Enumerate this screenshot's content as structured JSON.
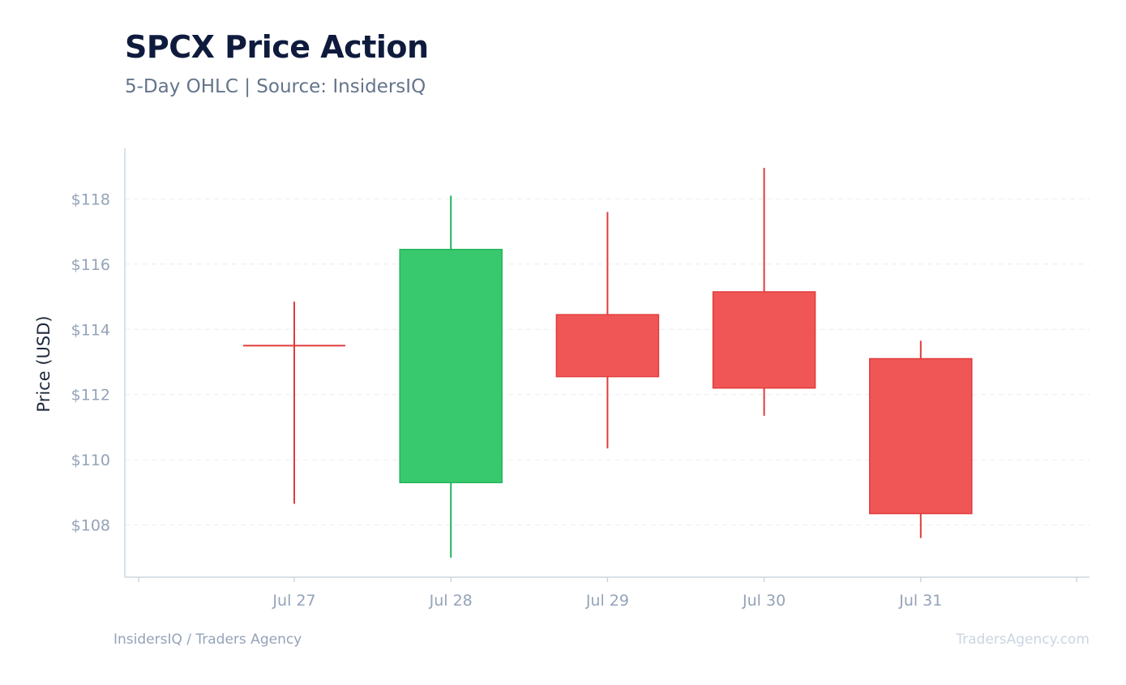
{
  "header": {
    "title": "SPCX Price Action",
    "subtitle": "5-Day OHLC | Source: InsidersIQ"
  },
  "footer": {
    "left": "InsidersIQ / Traders Agency",
    "right": "TradersAgency.com"
  },
  "colors": {
    "up": "#38c96e",
    "up_stroke": "#22b45a",
    "down": "#f05656",
    "down_stroke": "#e03c3c",
    "grid": "#e9edf2",
    "axis": "#cbd5e1"
  },
  "chart_data": {
    "type": "candlestick",
    "title": "SPCX Price Action",
    "subtitle": "5-Day OHLC | Source: InsidersIQ",
    "ylabel": "Price (USD)",
    "xlabel": "",
    "categories": [
      "Jul 27",
      "Jul 28",
      "Jul 29",
      "Jul 30",
      "Jul 31"
    ],
    "ohlc": [
      {
        "date": "Jul 27",
        "open": 113.5,
        "high": 114.85,
        "low": 108.65,
        "close": 113.5
      },
      {
        "date": "Jul 28",
        "open": 109.3,
        "high": 118.1,
        "low": 107.0,
        "close": 116.45
      },
      {
        "date": "Jul 29",
        "open": 114.45,
        "high": 117.6,
        "low": 110.35,
        "close": 112.55
      },
      {
        "date": "Jul 30",
        "open": 115.15,
        "high": 118.95,
        "low": 111.35,
        "close": 112.2
      },
      {
        "date": "Jul 31",
        "open": 113.1,
        "high": 113.65,
        "low": 107.6,
        "close": 108.35
      }
    ],
    "yticks": [
      108,
      110,
      112,
      114,
      116,
      118
    ],
    "ytick_labels": [
      "$108",
      "$110",
      "$112",
      "$114",
      "$116",
      "$118"
    ],
    "ylim": [
      106.4,
      119.55
    ],
    "grid": true,
    "legend": "none"
  }
}
